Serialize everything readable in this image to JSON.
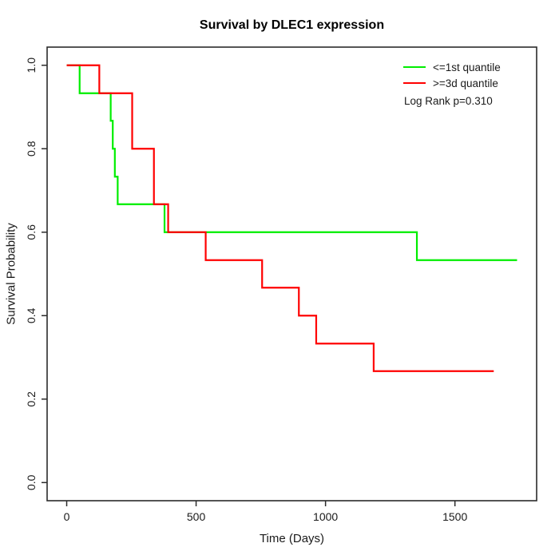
{
  "title": "Survival by DLEC1 expression",
  "x_axis": {
    "label": "Time (Days)",
    "ticks": [
      {
        "value": 0,
        "label": "0"
      },
      {
        "value": 500,
        "label": "500"
      },
      {
        "value": 1000,
        "label": "1000"
      },
      {
        "value": 1500,
        "label": "1500"
      }
    ]
  },
  "y_axis": {
    "label": "Survival Probability",
    "ticks": [
      {
        "value": 0.0,
        "label": "0.0"
      },
      {
        "value": 0.2,
        "label": "0.2"
      },
      {
        "value": 0.4,
        "label": "0.4"
      },
      {
        "value": 0.6,
        "label": "0.6"
      },
      {
        "value": 0.8,
        "label": "0.8"
      },
      {
        "value": 1.0,
        "label": "1.0"
      }
    ]
  },
  "legend": {
    "items": [
      {
        "label": "<=1st quantile",
        "color": "#00ee00"
      },
      {
        "label": ">=3d quantile",
        "color": "#ff0000"
      }
    ],
    "note": "Log Rank p=0.310"
  },
  "chart_data": {
    "type": "line",
    "subtype": "kaplan-meier-step",
    "title": "Survival by DLEC1 expression",
    "xlabel": "Time (Days)",
    "ylabel": "Survival Probability",
    "xlim": [
      0,
      1740
    ],
    "ylim": [
      0,
      1
    ],
    "grid": false,
    "legend_position": "top-right",
    "annotation": "Log Rank p=0.310",
    "series": [
      {
        "name": "<=1st quantile",
        "color": "#00ee00",
        "steps": [
          [
            0,
            1.0
          ],
          [
            50,
            0.933
          ],
          [
            170,
            0.867
          ],
          [
            178,
            0.8
          ],
          [
            186,
            0.733
          ],
          [
            197,
            0.667
          ],
          [
            378,
            0.6
          ],
          [
            1353,
            0.533
          ]
        ],
        "end_time": 1740,
        "final_survival": 0.533
      },
      {
        "name": ">=3d quantile",
        "color": "#ff0000",
        "steps": [
          [
            0,
            1.0
          ],
          [
            126,
            0.933
          ],
          [
            253,
            0.8
          ],
          [
            337,
            0.667
          ],
          [
            392,
            0.6
          ],
          [
            537,
            0.533
          ],
          [
            755,
            0.467
          ],
          [
            897,
            0.4
          ],
          [
            964,
            0.333
          ],
          [
            1186,
            0.267
          ]
        ],
        "end_time": 1650,
        "final_survival": 0.267
      }
    ]
  }
}
